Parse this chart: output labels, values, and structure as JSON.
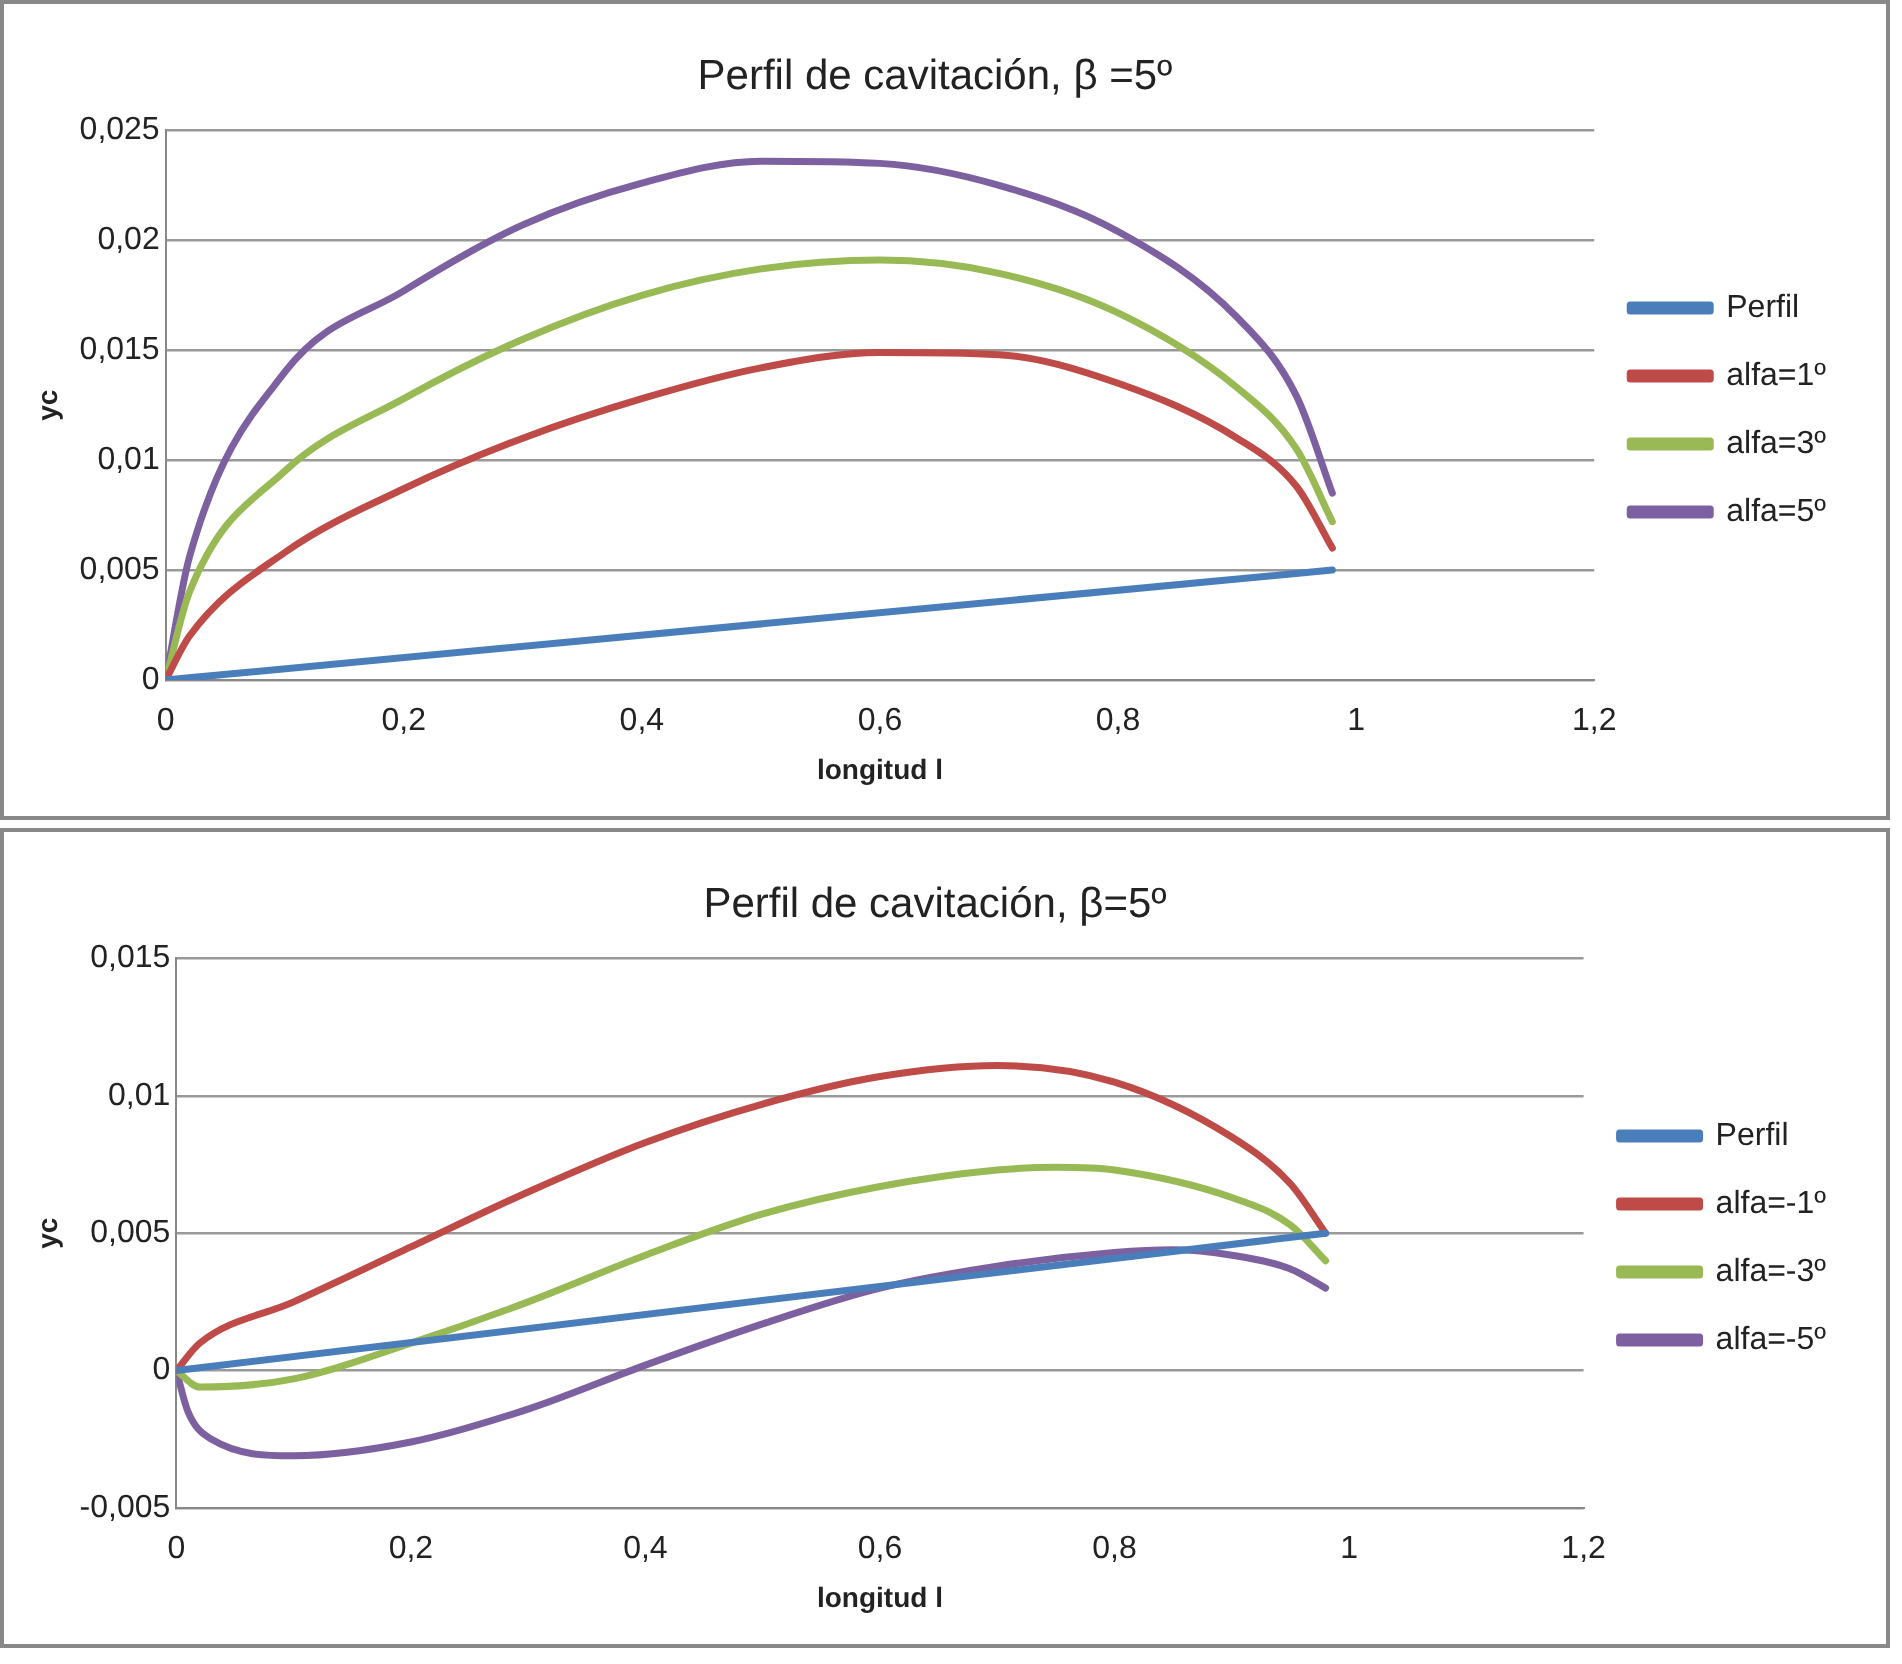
{
  "chart_data": [
    {
      "type": "line",
      "title": "Perfil de cavitación, β =5º",
      "xlabel": "longitud l",
      "ylabel": "yc",
      "legend": "right",
      "grid": "y",
      "marker": "none",
      "line_style": "solid",
      "xlim": [
        0,
        1.2
      ],
      "xticks": [
        {
          "value": 0,
          "label": "0"
        },
        {
          "value": 0.2,
          "label": "0,2"
        },
        {
          "value": 0.4,
          "label": "0,4"
        },
        {
          "value": 0.6,
          "label": "0,6"
        },
        {
          "value": 0.8,
          "label": "0,8"
        },
        {
          "value": 1,
          "label": "1"
        },
        {
          "value": 1.2,
          "label": "1,2"
        }
      ],
      "ylim": [
        0,
        0.025
      ],
      "yticks": [
        {
          "value": 0,
          "label": "0"
        },
        {
          "value": 0.005,
          "label": "0,005"
        },
        {
          "value": 0.01,
          "label": "0,01"
        },
        {
          "value": 0.015,
          "label": "0,015"
        },
        {
          "value": 0.02,
          "label": "0,02"
        },
        {
          "value": 0.025,
          "label": "0,025"
        }
      ],
      "series": [
        {
          "name": "Perfil",
          "color": "#4a7ebb",
          "x": [
            0,
            0.98
          ],
          "values": [
            0,
            0.005
          ]
        },
        {
          "name": "alfa=1º",
          "color": "#be4b48",
          "x": [
            0,
            0.02,
            0.1,
            0.2,
            0.3,
            0.4,
            0.5,
            0.6,
            0.7,
            0.8,
            0.9,
            0.95,
            0.98
          ],
          "values": [
            0,
            0.002,
            0.0058,
            0.0087,
            0.011,
            0.0128,
            0.0142,
            0.0149,
            0.0148,
            0.0135,
            0.011,
            0.0088,
            0.006
          ]
        },
        {
          "name": "alfa=3º",
          "color": "#98b954",
          "x": [
            0,
            0.02,
            0.1,
            0.2,
            0.3,
            0.4,
            0.5,
            0.6,
            0.7,
            0.8,
            0.9,
            0.95,
            0.98
          ],
          "values": [
            0,
            0.004,
            0.0095,
            0.0128,
            0.0155,
            0.0175,
            0.0187,
            0.0191,
            0.0185,
            0.0167,
            0.0133,
            0.0105,
            0.0072
          ]
        },
        {
          "name": "alfa=5º",
          "color": "#7d60a0",
          "x": [
            0,
            0.02,
            0.1,
            0.2,
            0.3,
            0.4,
            0.5,
            0.6,
            0.7,
            0.8,
            0.9,
            0.95,
            0.98
          ],
          "values": [
            0,
            0.0056,
            0.014,
            0.0177,
            0.0207,
            0.0226,
            0.0236,
            0.0235,
            0.0225,
            0.0204,
            0.0165,
            0.0129,
            0.0085
          ]
        }
      ]
    },
    {
      "type": "line",
      "title": "Perfil de cavitación, β=5º",
      "xlabel": "longitud l",
      "ylabel": "yc",
      "legend": "right",
      "grid": "y",
      "marker": "none",
      "line_style": "solid",
      "xlim": [
        0,
        1.2
      ],
      "xticks": [
        {
          "value": 0,
          "label": "0"
        },
        {
          "value": 0.2,
          "label": "0,2"
        },
        {
          "value": 0.4,
          "label": "0,4"
        },
        {
          "value": 0.6,
          "label": "0,6"
        },
        {
          "value": 0.8,
          "label": "0,8"
        },
        {
          "value": 1,
          "label": "1"
        },
        {
          "value": 1.2,
          "label": "1,2"
        }
      ],
      "ylim": [
        -0.005,
        0.015
      ],
      "yticks": [
        {
          "value": -0.005,
          "label": "-0,005"
        },
        {
          "value": 0,
          "label": "0"
        },
        {
          "value": 0.005,
          "label": "0,005"
        },
        {
          "value": 0.01,
          "label": "0,01"
        },
        {
          "value": 0.015,
          "label": "0,015"
        }
      ],
      "series": [
        {
          "name": "Perfil",
          "color": "#4a7ebb",
          "x": [
            0,
            0.98
          ],
          "values": [
            0,
            0.005
          ]
        },
        {
          "name": "alfa=-1º",
          "color": "#be4b48",
          "x": [
            0,
            0.02,
            0.1,
            0.2,
            0.3,
            0.4,
            0.5,
            0.6,
            0.7,
            0.8,
            0.9,
            0.95,
            0.98
          ],
          "values": [
            0,
            0.001,
            0.0025,
            0.0045,
            0.0065,
            0.0083,
            0.0097,
            0.0107,
            0.0111,
            0.0105,
            0.0085,
            0.0068,
            0.005
          ]
        },
        {
          "name": "alfa=-3º",
          "color": "#98b954",
          "x": [
            0,
            0.02,
            0.1,
            0.2,
            0.3,
            0.4,
            0.5,
            0.6,
            0.7,
            0.75,
            0.8,
            0.9,
            0.95,
            0.98
          ],
          "values": [
            0,
            -0.0006,
            -0.0003,
            0.001,
            0.0025,
            0.0042,
            0.0057,
            0.0067,
            0.0073,
            0.0074,
            0.0073,
            0.0063,
            0.0053,
            0.004
          ]
        },
        {
          "name": "alfa=-5º",
          "color": "#7d60a0",
          "x": [
            0,
            0.01,
            0.03,
            0.1,
            0.2,
            0.3,
            0.4,
            0.5,
            0.6,
            0.7,
            0.8,
            0.85,
            0.9,
            0.95,
            0.98
          ],
          "values": [
            0,
            -0.0015,
            -0.0025,
            -0.0031,
            -0.0026,
            -0.0014,
            0.0002,
            0.0017,
            0.003,
            0.0038,
            0.0043,
            0.0044,
            0.0042,
            0.0037,
            0.003
          ]
        }
      ]
    }
  ]
}
